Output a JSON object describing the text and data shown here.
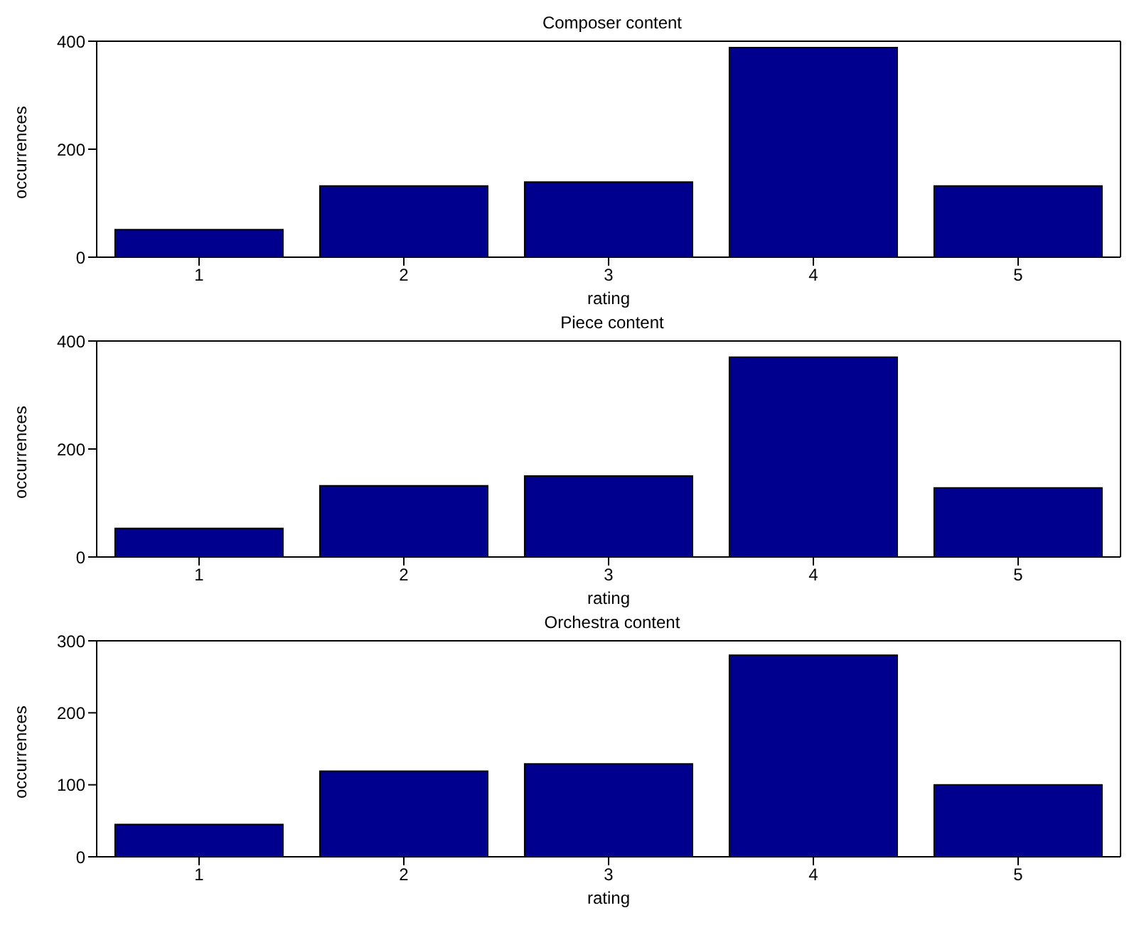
{
  "chart_data": [
    {
      "type": "bar",
      "title": "Composer content",
      "xlabel": "rating",
      "ylabel": "occurrences",
      "categories": [
        "1",
        "2",
        "3",
        "4",
        "5"
      ],
      "values": [
        51,
        132,
        139,
        388,
        132
      ],
      "color": "#00008f",
      "ylim": [
        0,
        400
      ],
      "yticks": [
        0,
        200,
        400
      ],
      "grid": false,
      "legend": false
    },
    {
      "type": "bar",
      "title": "Piece content",
      "xlabel": "rating",
      "ylabel": "occurrences",
      "categories": [
        "1",
        "2",
        "3",
        "4",
        "5"
      ],
      "values": [
        53,
        132,
        150,
        370,
        128
      ],
      "color": "#00008f",
      "ylim": [
        0,
        400
      ],
      "yticks": [
        0,
        200,
        400
      ],
      "grid": false,
      "legend": false
    },
    {
      "type": "bar",
      "title": "Orchestra content",
      "xlabel": "rating",
      "ylabel": "occurrences",
      "categories": [
        "1",
        "2",
        "3",
        "4",
        "5"
      ],
      "values": [
        45,
        119,
        129,
        280,
        100
      ],
      "color": "#00008f",
      "ylim": [
        0,
        300
      ],
      "yticks": [
        0,
        100,
        200,
        300
      ],
      "grid": false,
      "legend": false
    }
  ]
}
